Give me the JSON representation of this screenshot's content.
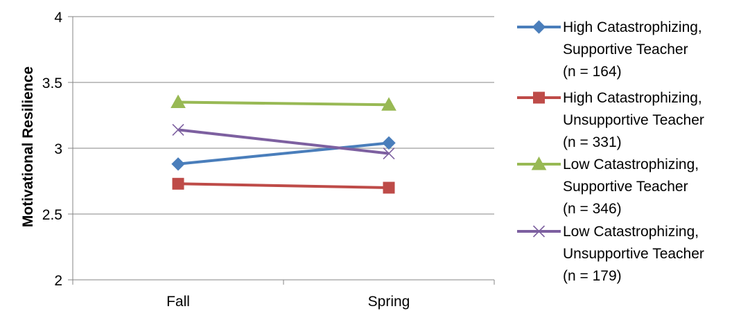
{
  "chart_data": {
    "type": "line",
    "title": "",
    "xlabel": "",
    "ylabel": "Motivational Resilience",
    "categories": [
      "Fall",
      "Spring"
    ],
    "ylim": [
      2,
      4
    ],
    "yticks": [
      2,
      2.5,
      3,
      3.5,
      4
    ],
    "ytick_labels": [
      "2",
      "2.5",
      "3",
      "3.5",
      "4"
    ],
    "grid": true,
    "legend_position": "right",
    "series": [
      {
        "name": "High Catastrophizing, Supportive Teacher (n = 164)",
        "legend_lines": [
          "High Catastrophizing,",
          "Supportive Teacher",
          "(n = 164)"
        ],
        "values": [
          2.88,
          3.04
        ],
        "color": "#4a7ebb",
        "marker": "diamond"
      },
      {
        "name": "High Catastrophizing, Unsupportive Teacher (n = 331)",
        "legend_lines": [
          "High Catastrophizing,",
          "Unsupportive Teacher",
          "(n = 331)"
        ],
        "values": [
          2.73,
          2.7
        ],
        "color": "#be4b48",
        "marker": "square"
      },
      {
        "name": "Low Catastrophizing, Supportive Teacher (n = 346)",
        "legend_lines": [
          "Low Catastrophizing,",
          "Supportive Teacher",
          "(n = 346)"
        ],
        "values": [
          3.35,
          3.33
        ],
        "color": "#98b954",
        "marker": "triangle"
      },
      {
        "name": "Low Catastrophizing, Unsupportive Teacher (n = 179)",
        "legend_lines": [
          "Low Catastrophizing,",
          "Unsupportive Teacher",
          "(n = 179)"
        ],
        "values": [
          3.14,
          2.96
        ],
        "color": "#7d60a0",
        "marker": "x"
      }
    ]
  }
}
